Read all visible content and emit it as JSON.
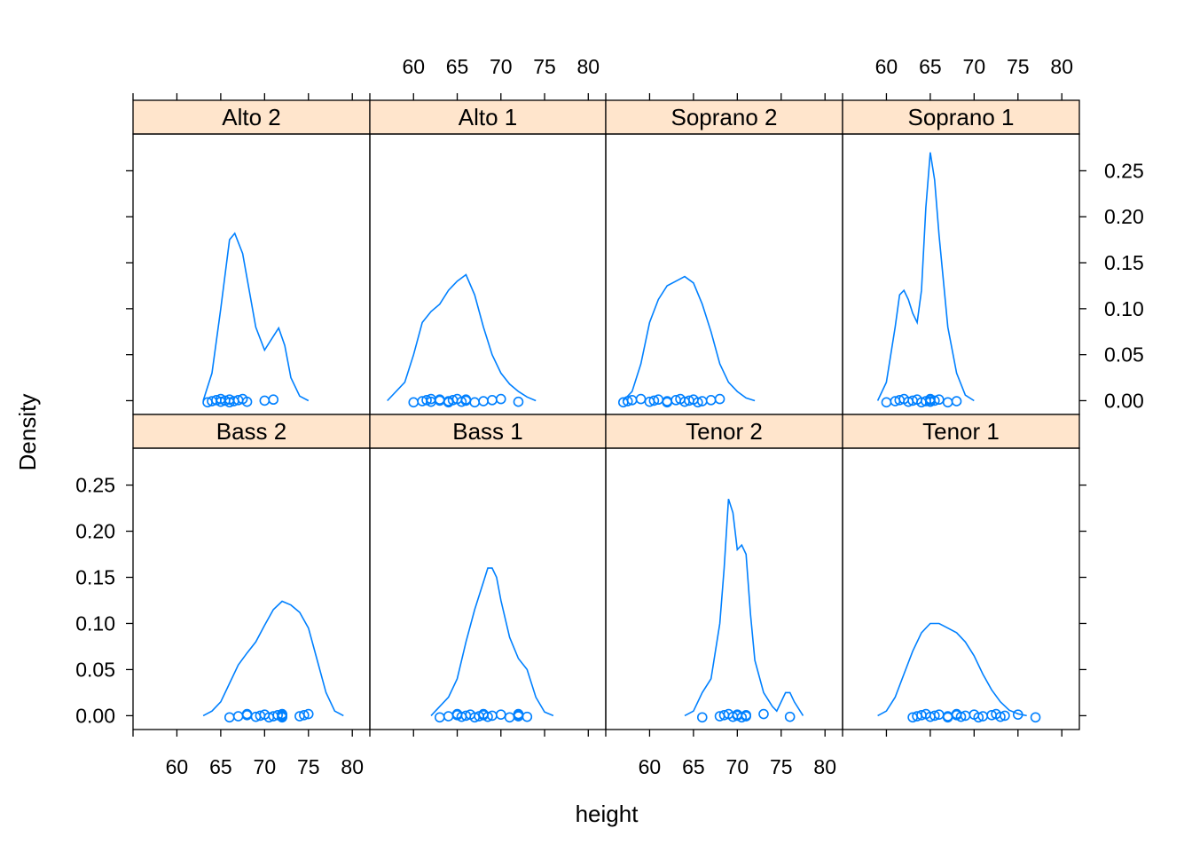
{
  "chart_data": {
    "type": "density",
    "xlabel": "height",
    "ylabel": "Density",
    "xlim": [
      55,
      82
    ],
    "ylim": [
      -0.015,
      0.29
    ],
    "x_ticks": [
      60,
      65,
      70,
      75,
      80
    ],
    "y_ticks": [
      0.0,
      0.05,
      0.1,
      0.15,
      0.2,
      0.25
    ],
    "y_tick_labels": [
      "0.00",
      "0.05",
      "0.10",
      "0.15",
      "0.20",
      "0.25"
    ],
    "strip_color": "#FFE5CC",
    "line_color": "#0080FF",
    "layout": "2 rows x 4 columns",
    "panels": [
      {
        "label": "Alto 2",
        "row": 0,
        "col": 0,
        "curve": [
          [
            63,
            0
          ],
          [
            64,
            0.03
          ],
          [
            65,
            0.1
          ],
          [
            66,
            0.175
          ],
          [
            66.6,
            0.182
          ],
          [
            67.5,
            0.16
          ],
          [
            69,
            0.08
          ],
          [
            70,
            0.055
          ],
          [
            71,
            0.07
          ],
          [
            71.6,
            0.079
          ],
          [
            72.3,
            0.06
          ],
          [
            73,
            0.025
          ],
          [
            74,
            0.005
          ],
          [
            75,
            0
          ]
        ],
        "points": [
          63.5,
          64,
          64.5,
          65,
          65,
          65.5,
          66,
          66,
          66.5,
          67,
          67.5,
          68,
          70,
          71
        ]
      },
      {
        "label": "Alto 1",
        "row": 0,
        "col": 1,
        "curve": [
          [
            57,
            0
          ],
          [
            59,
            0.02
          ],
          [
            60,
            0.05
          ],
          [
            61,
            0.085
          ],
          [
            62,
            0.097
          ],
          [
            63,
            0.105
          ],
          [
            64,
            0.12
          ],
          [
            65,
            0.13
          ],
          [
            66,
            0.137
          ],
          [
            67,
            0.115
          ],
          [
            68,
            0.08
          ],
          [
            69,
            0.05
          ],
          [
            70,
            0.03
          ],
          [
            71,
            0.018
          ],
          [
            72,
            0.01
          ],
          [
            73,
            0.004
          ],
          [
            74,
            0
          ]
        ],
        "points": [
          60,
          61,
          61.5,
          62,
          62,
          63,
          63,
          64,
          64,
          64.5,
          65,
          65.5,
          66,
          66,
          67,
          68,
          69,
          70,
          72
        ]
      },
      {
        "label": "Soprano 2",
        "row": 0,
        "col": 2,
        "curve": [
          [
            57,
            0
          ],
          [
            58,
            0.01
          ],
          [
            59,
            0.04
          ],
          [
            60,
            0.085
          ],
          [
            61,
            0.11
          ],
          [
            62,
            0.125
          ],
          [
            63,
            0.13
          ],
          [
            64,
            0.135
          ],
          [
            65,
            0.128
          ],
          [
            66,
            0.105
          ],
          [
            67,
            0.075
          ],
          [
            68,
            0.04
          ],
          [
            69,
            0.02
          ],
          [
            70,
            0.01
          ],
          [
            71,
            0.003
          ],
          [
            72,
            0
          ]
        ],
        "points": [
          57,
          57.5,
          58,
          59,
          60,
          60.5,
          61,
          62,
          62,
          63,
          63.5,
          64,
          64.5,
          65,
          65.5,
          66,
          67,
          68
        ]
      },
      {
        "label": "Soprano 1",
        "row": 0,
        "col": 3,
        "curve": [
          [
            59,
            0
          ],
          [
            60,
            0.02
          ],
          [
            61,
            0.08
          ],
          [
            61.5,
            0.115
          ],
          [
            62,
            0.12
          ],
          [
            62.5,
            0.11
          ],
          [
            63,
            0.095
          ],
          [
            63.5,
            0.085
          ],
          [
            64,
            0.12
          ],
          [
            64.5,
            0.21
          ],
          [
            65,
            0.27
          ],
          [
            65.5,
            0.24
          ],
          [
            66,
            0.18
          ],
          [
            67,
            0.08
          ],
          [
            68,
            0.03
          ],
          [
            69,
            0.006
          ],
          [
            70,
            0
          ]
        ],
        "points": [
          60,
          61,
          61.5,
          62,
          62.5,
          63,
          63.5,
          64,
          64.5,
          65,
          65,
          65,
          65.5,
          66,
          67,
          68
        ]
      },
      {
        "label": "Bass 2",
        "row": 1,
        "col": 0,
        "curve": [
          [
            63,
            0
          ],
          [
            64,
            0.005
          ],
          [
            65,
            0.015
          ],
          [
            66,
            0.035
          ],
          [
            67,
            0.055
          ],
          [
            68,
            0.068
          ],
          [
            69,
            0.08
          ],
          [
            70,
            0.098
          ],
          [
            71,
            0.115
          ],
          [
            72,
            0.124
          ],
          [
            73,
            0.12
          ],
          [
            74,
            0.112
          ],
          [
            75,
            0.095
          ],
          [
            76,
            0.06
          ],
          [
            77,
            0.025
          ],
          [
            78,
            0.005
          ],
          [
            79,
            0
          ]
        ],
        "points": [
          66,
          67,
          68,
          68,
          69,
          69.5,
          70,
          70.5,
          71,
          71.5,
          72,
          72,
          72,
          72,
          72,
          74,
          74.5,
          75
        ]
      },
      {
        "label": "Bass 1",
        "row": 1,
        "col": 1,
        "curve": [
          [
            62,
            0
          ],
          [
            64,
            0.02
          ],
          [
            65,
            0.04
          ],
          [
            66,
            0.08
          ],
          [
            67,
            0.115
          ],
          [
            68,
            0.145
          ],
          [
            68.5,
            0.16
          ],
          [
            69,
            0.16
          ],
          [
            69.5,
            0.15
          ],
          [
            70,
            0.125
          ],
          [
            71,
            0.085
          ],
          [
            72,
            0.062
          ],
          [
            73,
            0.05
          ],
          [
            74,
            0.02
          ],
          [
            75,
            0.004
          ],
          [
            76,
            0
          ]
        ],
        "points": [
          63,
          64,
          65,
          65,
          65.5,
          66,
          66.5,
          67,
          67.5,
          68,
          68,
          68.5,
          69,
          70,
          71,
          72,
          72,
          72,
          73
        ]
      },
      {
        "label": "Tenor 2",
        "row": 1,
        "col": 2,
        "curve": [
          [
            64,
            0
          ],
          [
            65,
            0.005
          ],
          [
            66,
            0.025
          ],
          [
            67,
            0.04
          ],
          [
            68,
            0.1
          ],
          [
            68.5,
            0.16
          ],
          [
            69,
            0.235
          ],
          [
            69.5,
            0.22
          ],
          [
            70,
            0.18
          ],
          [
            70.5,
            0.185
          ],
          [
            71,
            0.175
          ],
          [
            71.5,
            0.11
          ],
          [
            72,
            0.06
          ],
          [
            73,
            0.025
          ],
          [
            74,
            0.01
          ],
          [
            74.5,
            0.005
          ],
          [
            75.5,
            0.025
          ],
          [
            76,
            0.025
          ],
          [
            76.5,
            0.015
          ],
          [
            77.5,
            0
          ]
        ],
        "points": [
          66,
          68,
          68.5,
          69,
          69.5,
          70,
          70,
          70.5,
          71,
          71,
          73,
          76
        ]
      },
      {
        "label": "Tenor 1",
        "row": 1,
        "col": 3,
        "curve": [
          [
            59,
            0
          ],
          [
            60,
            0.005
          ],
          [
            61,
            0.02
          ],
          [
            62,
            0.045
          ],
          [
            63,
            0.07
          ],
          [
            64,
            0.09
          ],
          [
            65,
            0.1
          ],
          [
            66,
            0.1
          ],
          [
            67,
            0.095
          ],
          [
            68,
            0.09
          ],
          [
            69,
            0.08
          ],
          [
            70,
            0.065
          ],
          [
            71,
            0.045
          ],
          [
            72,
            0.028
          ],
          [
            73,
            0.015
          ],
          [
            74,
            0.006
          ],
          [
            75,
            0.002
          ],
          [
            76,
            0
          ]
        ],
        "points": [
          63,
          63.5,
          64,
          64.5,
          65,
          65.5,
          66,
          67,
          67,
          68,
          68,
          68.5,
          69,
          70,
          70.5,
          71,
          72,
          72.5,
          73,
          73.5,
          75,
          77
        ]
      }
    ]
  }
}
